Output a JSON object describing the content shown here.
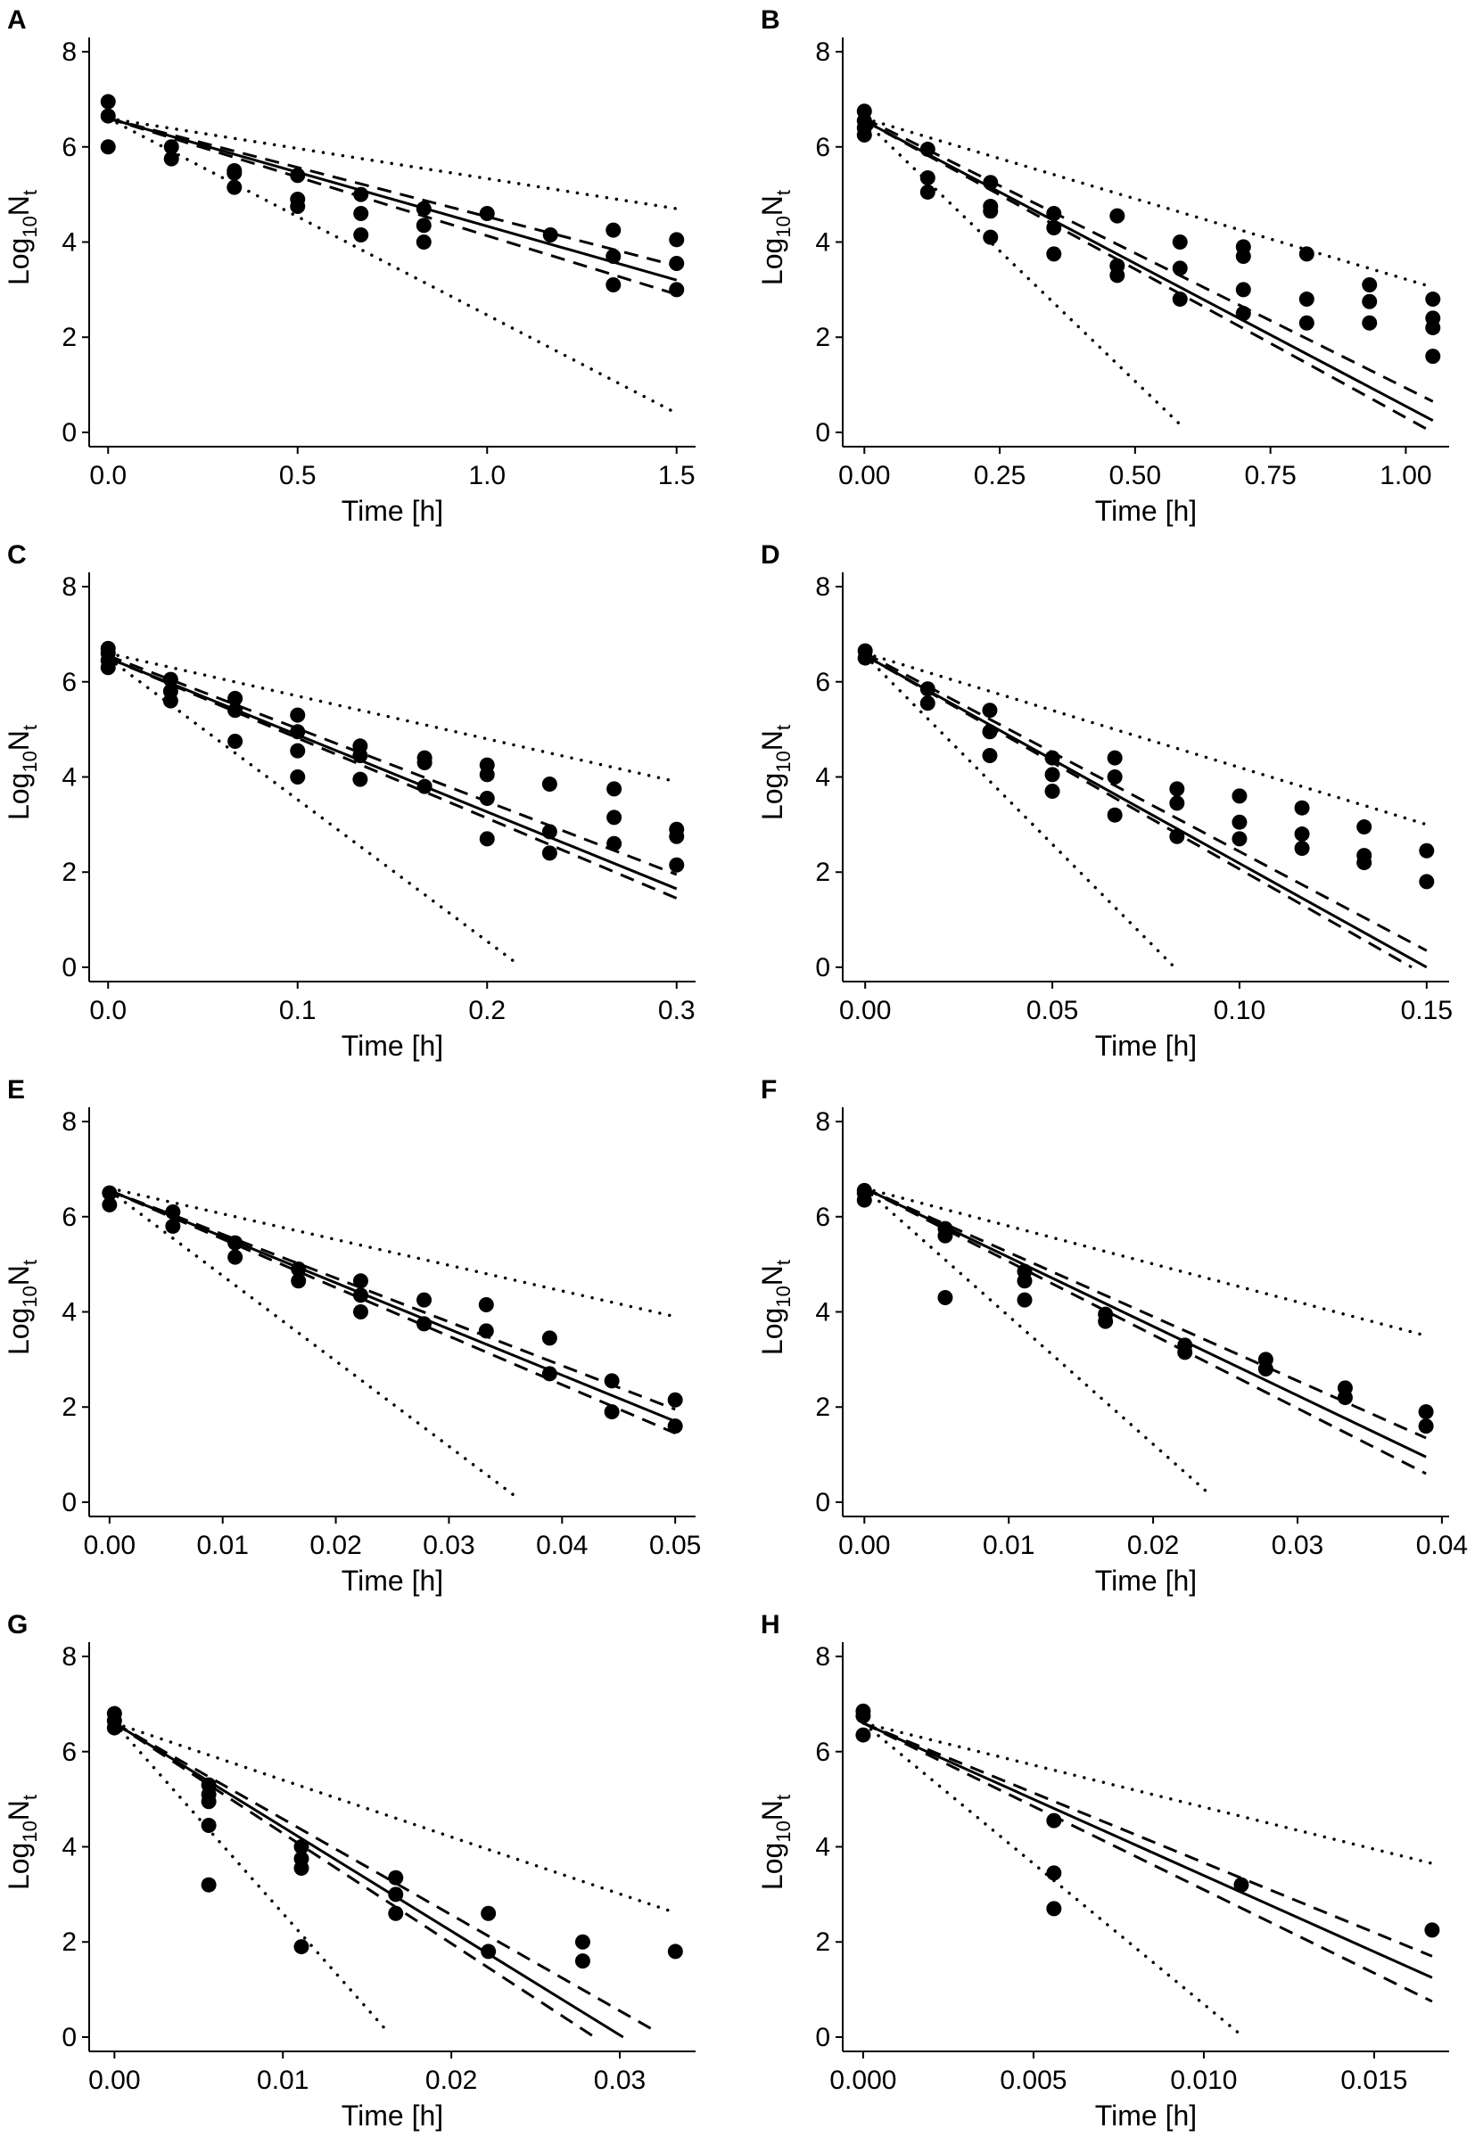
{
  "chart_data": [
    {
      "panel": "A",
      "type": "scatter",
      "xlabel": "Time [h]",
      "ylabel_base": "Log",
      "ylabel_sub1": "10",
      "ylabel_mid": "N",
      "ylabel_sub2": "t",
      "xlim": [
        -0.05,
        1.55
      ],
      "ylim": [
        -0.3,
        8.3
      ],
      "xticks": [
        0.0,
        0.5,
        1.0,
        1.5
      ],
      "xtick_labels": [
        "0.0",
        "0.5",
        "1.0",
        "1.5"
      ],
      "yticks": [
        0,
        2,
        4,
        6,
        8
      ],
      "ytick_labels": [
        "0",
        "2",
        "4",
        "6",
        "8"
      ],
      "fit_line": {
        "style": "solid",
        "x": [
          0,
          1.5
        ],
        "y": [
          6.6,
          3.2
        ]
      },
      "confidence_band": [
        {
          "style": "dashed",
          "x": [
            0,
            1.5
          ],
          "y": [
            6.6,
            3.5
          ]
        },
        {
          "style": "dashed",
          "x": [
            0,
            1.5
          ],
          "y": [
            6.6,
            2.9
          ]
        }
      ],
      "prediction_band": [
        {
          "style": "dotted",
          "x": [
            0,
            1.5
          ],
          "y": [
            6.6,
            4.7
          ]
        },
        {
          "style": "dotted",
          "x": [
            0,
            1.5
          ],
          "y": [
            6.6,
            0.4
          ]
        }
      ],
      "points": {
        "x": [
          0,
          0,
          0,
          0.167,
          0.167,
          0.333,
          0.333,
          0.333,
          0.5,
          0.5,
          0.5,
          0.667,
          0.667,
          0.667,
          0.833,
          0.833,
          0.833,
          1.0,
          1.167,
          1.333,
          1.333,
          1.333,
          1.5,
          1.5,
          1.5
        ],
        "y": [
          6.95,
          6.65,
          6.0,
          6.0,
          5.75,
          5.5,
          5.15,
          5.45,
          4.9,
          4.75,
          5.4,
          5.0,
          4.6,
          4.15,
          4.7,
          4.35,
          4.0,
          4.6,
          4.15,
          4.25,
          3.7,
          3.1,
          4.05,
          3.55,
          3.0
        ]
      }
    },
    {
      "panel": "B",
      "type": "scatter",
      "xlabel": "Time [h]",
      "ylabel_base": "Log",
      "ylabel_sub1": "10",
      "ylabel_mid": "N",
      "ylabel_sub2": "t",
      "xlim": [
        -0.04,
        1.08
      ],
      "ylim": [
        -0.3,
        8.3
      ],
      "xticks": [
        0.0,
        0.25,
        0.5,
        0.75,
        1.0
      ],
      "xtick_labels": [
        "0.00",
        "0.25",
        "0.50",
        "0.75",
        "1.00"
      ],
      "yticks": [
        0,
        2,
        4,
        6,
        8
      ],
      "ytick_labels": [
        "0",
        "2",
        "4",
        "6",
        "8"
      ],
      "fit_line": {
        "style": "solid",
        "x": [
          0,
          1.05
        ],
        "y": [
          6.55,
          0.25
        ]
      },
      "confidence_band": [
        {
          "style": "dashed",
          "x": [
            0,
            1.05
          ],
          "y": [
            6.6,
            0.65
          ]
        },
        {
          "style": "dashed",
          "x": [
            0,
            1.05
          ],
          "y": [
            6.55,
            0.0
          ]
        }
      ],
      "prediction_band": [
        {
          "style": "dotted",
          "x": [
            0,
            1.05
          ],
          "y": [
            6.6,
            3.05
          ]
        },
        {
          "style": "dotted",
          "x": [
            0,
            0.58
          ],
          "y": [
            6.55,
            0.2
          ]
        }
      ],
      "points": {
        "x": [
          0,
          0,
          0,
          0,
          0.117,
          0.117,
          0.117,
          0.233,
          0.233,
          0.233,
          0.233,
          0.35,
          0.35,
          0.35,
          0.467,
          0.467,
          0.467,
          0.583,
          0.583,
          0.583,
          0.7,
          0.7,
          0.7,
          0.7,
          0.817,
          0.817,
          0.817,
          0.933,
          0.933,
          0.933,
          1.05,
          1.05,
          1.05,
          1.05
        ],
        "y": [
          6.75,
          6.55,
          6.4,
          6.25,
          5.95,
          5.35,
          5.05,
          5.25,
          4.75,
          4.65,
          4.1,
          4.6,
          4.3,
          3.75,
          4.55,
          3.5,
          3.3,
          4.0,
          3.45,
          2.8,
          3.9,
          3.7,
          3.0,
          2.5,
          3.75,
          2.8,
          2.3,
          3.1,
          2.75,
          2.3,
          2.8,
          2.4,
          2.2,
          1.6
        ]
      }
    },
    {
      "panel": "C",
      "type": "scatter",
      "xlabel": "Time [h]",
      "ylabel_base": "Log",
      "ylabel_sub1": "10",
      "ylabel_mid": "N",
      "ylabel_sub2": "t",
      "xlim": [
        -0.01,
        0.31
      ],
      "ylim": [
        -0.3,
        8.3
      ],
      "xticks": [
        0.0,
        0.1,
        0.2,
        0.3
      ],
      "xtick_labels": [
        "0.0",
        "0.1",
        "0.2",
        "0.3"
      ],
      "yticks": [
        0,
        2,
        4,
        6,
        8
      ],
      "ytick_labels": [
        "0",
        "2",
        "4",
        "6",
        "8"
      ],
      "fit_line": {
        "style": "solid",
        "x": [
          0,
          0.3
        ],
        "y": [
          6.5,
          1.65
        ]
      },
      "confidence_band": [
        {
          "style": "dashed",
          "x": [
            0,
            0.3
          ],
          "y": [
            6.55,
            1.95
          ]
        },
        {
          "style": "dashed",
          "x": [
            0,
            0.3
          ],
          "y": [
            6.5,
            1.45
          ]
        }
      ],
      "prediction_band": [
        {
          "style": "dotted",
          "x": [
            0,
            0.3
          ],
          "y": [
            6.6,
            3.9
          ]
        },
        {
          "style": "dotted",
          "x": [
            0,
            0.215
          ],
          "y": [
            6.5,
            0.1
          ]
        }
      ],
      "points": {
        "x": [
          0,
          0,
          0,
          0,
          0.033,
          0.033,
          0.033,
          0.067,
          0.067,
          0.067,
          0.1,
          0.1,
          0.1,
          0.1,
          0.133,
          0.133,
          0.133,
          0.167,
          0.167,
          0.167,
          0.2,
          0.2,
          0.2,
          0.2,
          0.233,
          0.233,
          0.233,
          0.267,
          0.267,
          0.267,
          0.3,
          0.3,
          0.3
        ],
        "y": [
          6.7,
          6.6,
          6.45,
          6.3,
          6.05,
          5.8,
          5.6,
          5.65,
          5.4,
          4.75,
          5.3,
          4.95,
          4.55,
          4.0,
          4.65,
          4.45,
          3.95,
          4.4,
          4.3,
          3.8,
          4.25,
          4.05,
          3.55,
          2.7,
          3.85,
          2.85,
          2.4,
          3.75,
          3.15,
          2.6,
          2.9,
          2.75,
          2.15
        ]
      }
    },
    {
      "panel": "D",
      "type": "scatter",
      "xlabel": "Time [h]",
      "ylabel_base": "Log",
      "ylabel_sub1": "10",
      "ylabel_mid": "N",
      "ylabel_sub2": "t",
      "xlim": [
        -0.006,
        0.156
      ],
      "ylim": [
        -0.3,
        8.3
      ],
      "xticks": [
        0.0,
        0.05,
        0.1,
        0.15
      ],
      "xtick_labels": [
        "0.00",
        "0.05",
        "0.10",
        "0.15"
      ],
      "yticks": [
        0,
        2,
        4,
        6,
        8
      ],
      "ytick_labels": [
        "0",
        "2",
        "4",
        "6",
        "8"
      ],
      "fit_line": {
        "style": "solid",
        "x": [
          0,
          0.15
        ],
        "y": [
          6.55,
          0.0
        ]
      },
      "confidence_band": [
        {
          "style": "dashed",
          "x": [
            0,
            0.15
          ],
          "y": [
            6.6,
            0.35
          ]
        },
        {
          "style": "dashed",
          "x": [
            0,
            0.146
          ],
          "y": [
            6.55,
            0.0
          ]
        }
      ],
      "prediction_band": [
        {
          "style": "dotted",
          "x": [
            0,
            0.15
          ],
          "y": [
            6.6,
            3.0
          ]
        },
        {
          "style": "dotted",
          "x": [
            0,
            0.082
          ],
          "y": [
            6.55,
            0.05
          ]
        }
      ],
      "points": {
        "x": [
          0,
          0,
          0.0167,
          0.0167,
          0.0333,
          0.0333,
          0.0333,
          0.05,
          0.05,
          0.05,
          0.0667,
          0.0667,
          0.0667,
          0.0833,
          0.0833,
          0.0833,
          0.1,
          0.1,
          0.1,
          0.1167,
          0.1167,
          0.1167,
          0.1333,
          0.1333,
          0.1333,
          0.15,
          0.15
        ],
        "y": [
          6.65,
          6.5,
          5.85,
          5.55,
          5.4,
          4.95,
          4.45,
          4.4,
          4.05,
          3.7,
          4.4,
          4.0,
          3.2,
          3.75,
          3.45,
          2.75,
          3.6,
          3.05,
          2.7,
          3.35,
          2.8,
          2.5,
          2.95,
          2.35,
          2.2,
          2.45,
          1.8
        ]
      }
    },
    {
      "panel": "E",
      "type": "scatter",
      "xlabel": "Time [h]",
      "ylabel_base": "Log",
      "ylabel_sub1": "10",
      "ylabel_mid": "N",
      "ylabel_sub2": "t",
      "xlim": [
        -0.0018,
        0.0518
      ],
      "ylim": [
        -0.3,
        8.3
      ],
      "xticks": [
        0.0,
        0.01,
        0.02,
        0.03,
        0.04,
        0.05
      ],
      "xtick_labels": [
        "0.00",
        "0.01",
        "0.02",
        "0.03",
        "0.04",
        "0.05"
      ],
      "yticks": [
        0,
        2,
        4,
        6,
        8
      ],
      "ytick_labels": [
        "0",
        "2",
        "4",
        "6",
        "8"
      ],
      "fit_line": {
        "style": "solid",
        "x": [
          0,
          0.05
        ],
        "y": [
          6.55,
          1.7
        ]
      },
      "confidence_band": [
        {
          "style": "dashed",
          "x": [
            0,
            0.05
          ],
          "y": [
            6.55,
            1.95
          ]
        },
        {
          "style": "dashed",
          "x": [
            0,
            0.05
          ],
          "y": [
            6.55,
            1.45
          ]
        }
      ],
      "prediction_band": [
        {
          "style": "dotted",
          "x": [
            0,
            0.05
          ],
          "y": [
            6.6,
            3.9
          ]
        },
        {
          "style": "dotted",
          "x": [
            0,
            0.036
          ],
          "y": [
            6.55,
            0.1
          ]
        }
      ],
      "points": {
        "x": [
          0,
          0,
          0.0056,
          0.0056,
          0.0111,
          0.0111,
          0.0167,
          0.0167,
          0.0222,
          0.0222,
          0.0222,
          0.0278,
          0.0278,
          0.0333,
          0.0333,
          0.0389,
          0.0389,
          0.0444,
          0.0444,
          0.05,
          0.05
        ],
        "y": [
          6.5,
          6.25,
          6.1,
          5.8,
          5.45,
          5.15,
          4.9,
          4.65,
          4.65,
          4.35,
          4.0,
          4.25,
          3.75,
          4.15,
          3.6,
          3.45,
          2.7,
          2.55,
          1.9,
          2.15,
          1.6
        ]
      }
    },
    {
      "panel": "F",
      "type": "scatter",
      "xlabel": "Time [h]",
      "ylabel_base": "Log",
      "ylabel_sub1": "10",
      "ylabel_mid": "N",
      "ylabel_sub2": "t",
      "xlim": [
        -0.0015,
        0.0405
      ],
      "ylim": [
        -0.3,
        8.3
      ],
      "xticks": [
        0.0,
        0.01,
        0.02,
        0.03,
        0.04
      ],
      "xtick_labels": [
        "0.00",
        "0.01",
        "0.02",
        "0.03",
        "0.04"
      ],
      "yticks": [
        0,
        2,
        4,
        6,
        8
      ],
      "ytick_labels": [
        "0",
        "2",
        "4",
        "6",
        "8"
      ],
      "fit_line": {
        "style": "solid",
        "x": [
          0,
          0.0389
        ],
        "y": [
          6.6,
          0.95
        ]
      },
      "confidence_band": [
        {
          "style": "dashed",
          "x": [
            0,
            0.0389
          ],
          "y": [
            6.6,
            1.35
          ]
        },
        {
          "style": "dashed",
          "x": [
            0,
            0.0389
          ],
          "y": [
            6.6,
            0.6
          ]
        }
      ],
      "prediction_band": [
        {
          "style": "dotted",
          "x": [
            0,
            0.0389
          ],
          "y": [
            6.6,
            3.5
          ]
        },
        {
          "style": "dotted",
          "x": [
            0,
            0.0236
          ],
          "y": [
            6.6,
            0.25
          ]
        }
      ],
      "points": {
        "x": [
          0,
          0,
          0,
          0.0056,
          0.0056,
          0.0056,
          0.0111,
          0.0111,
          0.0111,
          0.0167,
          0.0167,
          0.0222,
          0.0222,
          0.0278,
          0.0278,
          0.0333,
          0.0333,
          0.0389,
          0.0389
        ],
        "y": [
          6.55,
          6.35,
          6.5,
          5.75,
          5.6,
          4.3,
          4.85,
          4.65,
          4.25,
          3.95,
          3.8,
          3.3,
          3.15,
          3.0,
          2.8,
          2.4,
          2.2,
          1.9,
          1.6
        ]
      }
    },
    {
      "panel": "G",
      "type": "scatter",
      "xlabel": "Time [h]",
      "ylabel_base": "Log",
      "ylabel_sub1": "10",
      "ylabel_mid": "N",
      "ylabel_sub2": "t",
      "xlim": [
        -0.0015,
        0.0345
      ],
      "ylim": [
        -0.3,
        8.3
      ],
      "xticks": [
        0.0,
        0.01,
        0.02,
        0.03
      ],
      "xtick_labels": [
        "0.00",
        "0.01",
        "0.02",
        "0.03"
      ],
      "yticks": [
        0,
        2,
        4,
        6,
        8
      ],
      "ytick_labels": [
        "0",
        "2",
        "4",
        "6",
        "8"
      ],
      "fit_line": {
        "style": "solid",
        "x": [
          0,
          0.0302
        ],
        "y": [
          6.6,
          0.0
        ]
      },
      "confidence_band": [
        {
          "style": "dashed",
          "x": [
            0,
            0.032
          ],
          "y": [
            6.6,
            0.15
          ]
        },
        {
          "style": "dashed",
          "x": [
            0,
            0.0285
          ],
          "y": [
            6.6,
            0.0
          ]
        }
      ],
      "prediction_band": [
        {
          "style": "dotted",
          "x": [
            0,
            0.033
          ],
          "y": [
            6.6,
            2.65
          ]
        },
        {
          "style": "dotted",
          "x": [
            0,
            0.016
          ],
          "y": [
            6.6,
            0.2
          ]
        }
      ],
      "points": {
        "x": [
          0,
          0,
          0,
          0.0056,
          0.0056,
          0.0056,
          0.0056,
          0.0056,
          0.0111,
          0.0111,
          0.0111,
          0.0111,
          0.0167,
          0.0167,
          0.0167,
          0.0222,
          0.0222,
          0.0278,
          0.0278,
          0.0333
        ],
        "y": [
          6.8,
          6.65,
          6.5,
          5.3,
          5.1,
          4.95,
          4.45,
          3.2,
          4.0,
          3.75,
          3.55,
          1.9,
          3.35,
          3.0,
          2.6,
          2.6,
          1.8,
          2.0,
          1.6,
          1.8
        ]
      }
    },
    {
      "panel": "H",
      "type": "scatter",
      "xlabel": "Time [h]",
      "ylabel_base": "Log",
      "ylabel_sub1": "10",
      "ylabel_mid": "N",
      "ylabel_sub2": "t",
      "xlim": [
        -0.0006,
        0.0172
      ],
      "ylim": [
        -0.3,
        8.3
      ],
      "xticks": [
        0.0,
        0.005,
        0.01,
        0.015
      ],
      "xtick_labels": [
        "0.000",
        "0.005",
        "0.010",
        "0.015"
      ],
      "yticks": [
        0,
        2,
        4,
        6,
        8
      ],
      "ytick_labels": [
        "0",
        "2",
        "4",
        "6",
        "8"
      ],
      "fit_line": {
        "style": "solid",
        "x": [
          0,
          0.0167
        ],
        "y": [
          6.6,
          1.25
        ]
      },
      "confidence_band": [
        {
          "style": "dashed",
          "x": [
            0,
            0.0167
          ],
          "y": [
            6.6,
            1.7
          ]
        },
        {
          "style": "dashed",
          "x": [
            0,
            0.0167
          ],
          "y": [
            6.6,
            0.75
          ]
        }
      ],
      "prediction_band": [
        {
          "style": "dotted",
          "x": [
            0,
            0.0167
          ],
          "y": [
            6.6,
            3.65
          ]
        },
        {
          "style": "dotted",
          "x": [
            0,
            0.011
          ],
          "y": [
            6.6,
            0.1
          ]
        }
      ],
      "points": {
        "x": [
          0,
          0,
          0,
          0.0056,
          0.0056,
          0.0056,
          0.0111,
          0.0167
        ],
        "y": [
          6.85,
          6.75,
          6.35,
          4.55,
          3.45,
          2.7,
          3.2,
          2.25
        ]
      }
    }
  ]
}
